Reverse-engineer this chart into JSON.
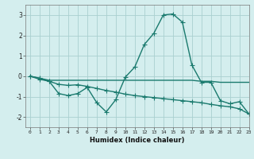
{
  "x": [
    0,
    1,
    2,
    3,
    4,
    5,
    6,
    7,
    8,
    9,
    10,
    11,
    12,
    13,
    14,
    15,
    16,
    17,
    18,
    19,
    20,
    21,
    22,
    23
  ],
  "line1": [
    0.0,
    -0.15,
    -0.25,
    -0.85,
    -0.95,
    -0.85,
    -0.55,
    -1.3,
    -1.75,
    -1.15,
    -0.05,
    0.45,
    1.55,
    2.1,
    3.0,
    3.05,
    2.65,
    0.55,
    -0.3,
    -0.3,
    -1.2,
    -1.35,
    -1.25,
    -1.85
  ],
  "line2": [
    0.0,
    -0.1,
    -0.25,
    -0.4,
    -0.45,
    -0.42,
    -0.5,
    -0.6,
    -0.7,
    -0.78,
    -0.88,
    -0.95,
    -1.0,
    -1.05,
    -1.1,
    -1.15,
    -1.2,
    -1.25,
    -1.3,
    -1.38,
    -1.45,
    -1.5,
    -1.6,
    -1.85
  ],
  "line3": [
    0.0,
    -0.1,
    -0.2,
    -0.2,
    -0.2,
    -0.2,
    -0.2,
    -0.2,
    -0.2,
    -0.2,
    -0.2,
    -0.2,
    -0.2,
    -0.2,
    -0.2,
    -0.2,
    -0.2,
    -0.2,
    -0.25,
    -0.25,
    -0.3,
    -0.3,
    -0.3,
    -0.3
  ],
  "color": "#1a7a6e",
  "bg_color": "#d4eeee",
  "grid_color": "#aad0d0",
  "xlabel": "Humidex (Indice chaleur)",
  "ylim": [
    -2.5,
    3.5
  ],
  "xlim": [
    -0.5,
    23
  ],
  "yticks": [
    -2,
    -1,
    0,
    1,
    2,
    3
  ],
  "xticks": [
    0,
    1,
    2,
    3,
    4,
    5,
    6,
    7,
    8,
    9,
    10,
    11,
    12,
    13,
    14,
    15,
    16,
    17,
    18,
    19,
    20,
    21,
    22,
    23
  ],
  "marker": "+",
  "markersize": 4,
  "linewidth": 1.0
}
